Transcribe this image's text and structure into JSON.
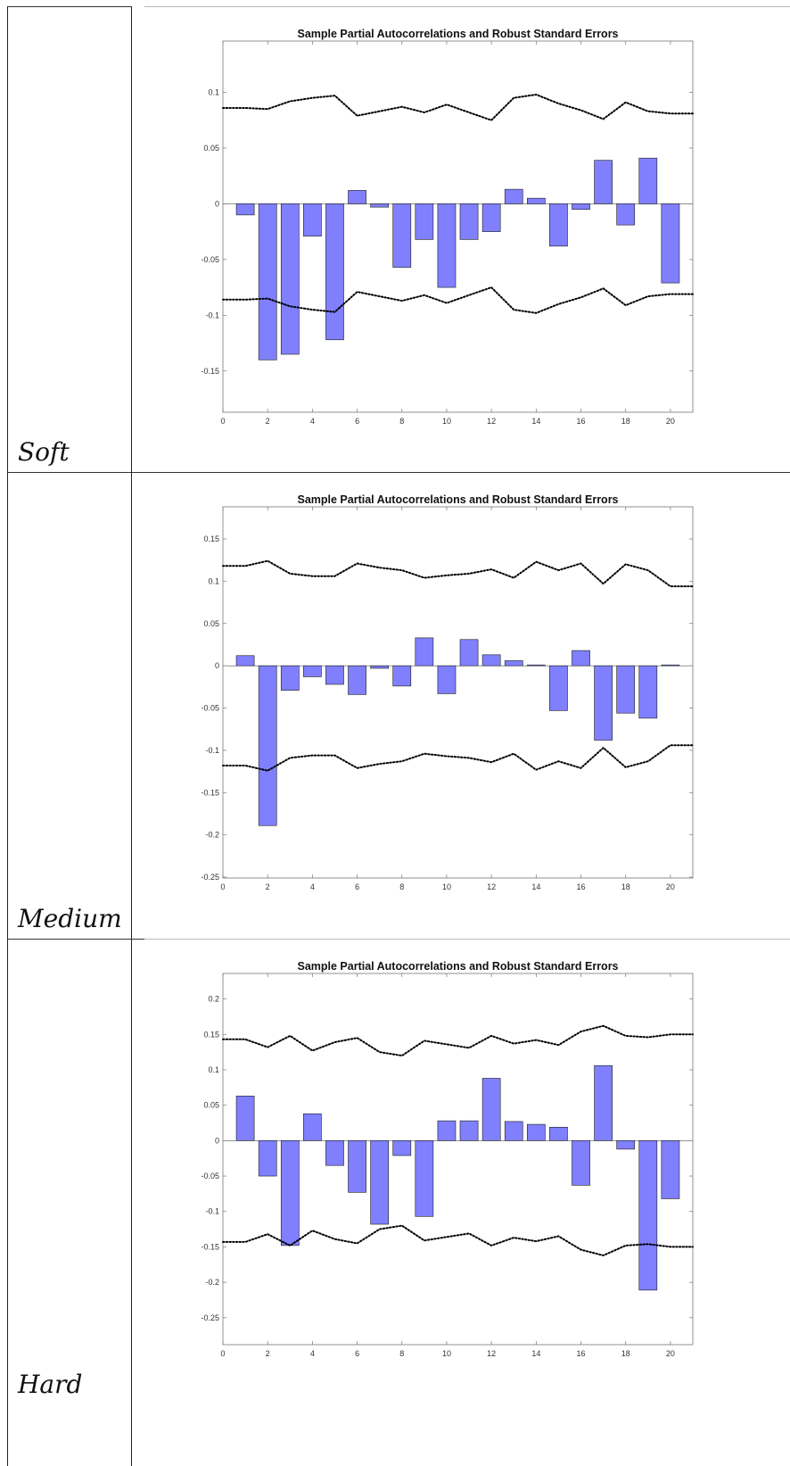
{
  "rows": [
    {
      "label": "Soft"
    },
    {
      "label": "Medium"
    },
    {
      "label": "Hard"
    }
  ],
  "colors": {
    "bar_fill": "#8080ff",
    "bar_edge": "#1a1a1a",
    "bound_line": "#000000",
    "axes": "#777777"
  },
  "chart_data": [
    {
      "type": "bar",
      "title": "Sample Partial Autocorrelations and Robust Standard Errors",
      "xlabel": "",
      "ylabel": "",
      "xlim": [
        0,
        21
      ],
      "ylim": [
        -0.187,
        0.146
      ],
      "xticks": [
        0,
        2,
        4,
        6,
        8,
        10,
        12,
        14,
        16,
        18,
        20
      ],
      "yticks": [
        -0.15,
        -0.1,
        -0.05,
        0,
        0.05,
        0.1
      ],
      "ytick_labels": [
        "-0.15",
        "-0.1",
        "-0.05",
        "0",
        "0.05",
        "0.1"
      ],
      "categories": [
        1,
        2,
        3,
        4,
        5,
        6,
        7,
        8,
        9,
        10,
        11,
        12,
        13,
        14,
        15,
        16,
        17,
        18,
        19,
        20
      ],
      "values": [
        -0.01,
        -0.14,
        -0.135,
        -0.029,
        -0.122,
        0.012,
        -0.003,
        -0.057,
        -0.032,
        -0.075,
        -0.032,
        -0.025,
        0.013,
        0.005,
        -0.038,
        -0.005,
        0.039,
        -0.019,
        0.041,
        -0.071
      ],
      "bounds_x": [
        0,
        1,
        2,
        3,
        4,
        5,
        6,
        7,
        8,
        9,
        10,
        11,
        12,
        13,
        14,
        15,
        16,
        17,
        18,
        19,
        20,
        21
      ],
      "upper_bound": [
        0.086,
        0.086,
        0.085,
        0.092,
        0.095,
        0.097,
        0.079,
        0.083,
        0.087,
        0.082,
        0.089,
        0.082,
        0.075,
        0.095,
        0.098,
        0.09,
        0.084,
        0.076,
        0.091,
        0.083,
        0.081,
        0.081
      ],
      "lower_bound": [
        -0.086,
        -0.086,
        -0.085,
        -0.092,
        -0.095,
        -0.097,
        -0.079,
        -0.083,
        -0.087,
        -0.082,
        -0.089,
        -0.082,
        -0.075,
        -0.095,
        -0.098,
        -0.09,
        -0.084,
        -0.076,
        -0.091,
        -0.083,
        -0.081,
        -0.081
      ]
    },
    {
      "type": "bar",
      "title": "Sample Partial Autocorrelations and Robust Standard Errors",
      "xlabel": "",
      "ylabel": "",
      "xlim": [
        0,
        21
      ],
      "ylim": [
        -0.251,
        0.188
      ],
      "xticks": [
        0,
        2,
        4,
        6,
        8,
        10,
        12,
        14,
        16,
        18,
        20
      ],
      "yticks": [
        -0.25,
        -0.2,
        -0.15,
        -0.1,
        -0.05,
        0,
        0.05,
        0.1,
        0.15
      ],
      "ytick_labels": [
        "-0.25",
        "-0.2",
        "-0.15",
        "-0.1",
        "-0.05",
        "0",
        "0.05",
        "0.1",
        "0.15"
      ],
      "categories": [
        1,
        2,
        3,
        4,
        5,
        6,
        7,
        8,
        9,
        10,
        11,
        12,
        13,
        14,
        15,
        16,
        17,
        18,
        19,
        20
      ],
      "values": [
        0.012,
        -0.189,
        -0.029,
        -0.013,
        -0.022,
        -0.034,
        -0.003,
        -0.024,
        0.033,
        -0.033,
        0.031,
        0.013,
        0.006,
        0.001,
        -0.053,
        0.018,
        -0.088,
        -0.056,
        -0.062,
        0.001
      ],
      "bounds_x": [
        0,
        1,
        2,
        3,
        4,
        5,
        6,
        7,
        8,
        9,
        10,
        11,
        12,
        13,
        14,
        15,
        16,
        17,
        18,
        19,
        20,
        21
      ],
      "upper_bound": [
        0.118,
        0.118,
        0.124,
        0.109,
        0.106,
        0.106,
        0.121,
        0.116,
        0.113,
        0.104,
        0.107,
        0.109,
        0.114,
        0.104,
        0.123,
        0.113,
        0.121,
        0.097,
        0.12,
        0.113,
        0.094,
        0.094
      ],
      "lower_bound": [
        -0.118,
        -0.118,
        -0.124,
        -0.109,
        -0.106,
        -0.106,
        -0.121,
        -0.116,
        -0.113,
        -0.104,
        -0.107,
        -0.109,
        -0.114,
        -0.104,
        -0.123,
        -0.113,
        -0.121,
        -0.097,
        -0.12,
        -0.113,
        -0.094,
        -0.094
      ]
    },
    {
      "type": "bar",
      "title": "Sample Partial Autocorrelations and Robust Standard Errors",
      "xlabel": "",
      "ylabel": "",
      "xlim": [
        0,
        21
      ],
      "ylim": [
        -0.288,
        0.236
      ],
      "xticks": [
        0,
        2,
        4,
        6,
        8,
        10,
        12,
        14,
        16,
        18,
        20
      ],
      "yticks": [
        -0.25,
        -0.2,
        -0.15,
        -0.1,
        -0.05,
        0,
        0.05,
        0.1,
        0.15,
        0.2
      ],
      "ytick_labels": [
        "-0.25",
        "-0.2",
        "-0.15",
        "-0.1",
        "-0.05",
        "0",
        "0.05",
        "0.1",
        "0.15",
        "0.2"
      ],
      "categories": [
        1,
        2,
        3,
        4,
        5,
        6,
        7,
        8,
        9,
        10,
        11,
        12,
        13,
        14,
        15,
        16,
        17,
        18,
        19,
        20
      ],
      "values": [
        0.063,
        -0.05,
        -0.148,
        0.038,
        -0.035,
        -0.073,
        -0.118,
        -0.021,
        -0.107,
        0.028,
        0.028,
        0.088,
        0.027,
        0.023,
        0.019,
        -0.063,
        0.106,
        -0.012,
        -0.211,
        -0.082
      ],
      "bounds_x": [
        0,
        1,
        2,
        3,
        4,
        5,
        6,
        7,
        8,
        9,
        10,
        11,
        12,
        13,
        14,
        15,
        16,
        17,
        18,
        19,
        20,
        21
      ],
      "upper_bound": [
        0.143,
        0.143,
        0.132,
        0.148,
        0.127,
        0.139,
        0.145,
        0.125,
        0.12,
        0.141,
        0.136,
        0.131,
        0.148,
        0.137,
        0.142,
        0.135,
        0.154,
        0.162,
        0.148,
        0.146,
        0.15,
        0.15
      ],
      "lower_bound": [
        -0.143,
        -0.143,
        -0.132,
        -0.148,
        -0.127,
        -0.139,
        -0.145,
        -0.125,
        -0.12,
        -0.141,
        -0.136,
        -0.131,
        -0.148,
        -0.137,
        -0.142,
        -0.135,
        -0.154,
        -0.162,
        -0.148,
        -0.146,
        -0.15,
        -0.15
      ]
    }
  ]
}
